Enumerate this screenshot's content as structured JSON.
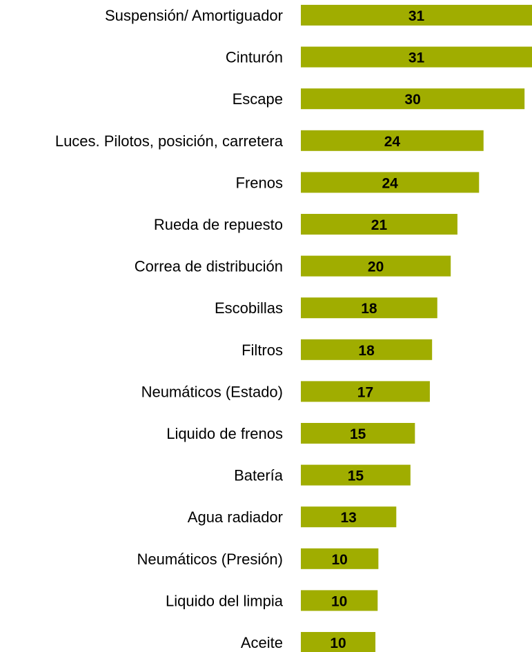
{
  "chart_data": {
    "type": "bar",
    "orientation": "horizontal",
    "categories": [
      "Suspensión/ Amortiguador",
      "Cinturón",
      "Escape",
      "Luces. Pilotos, posición, carretera",
      "Frenos",
      "Rueda de repuesto",
      "Correa de distribución",
      "Escobillas",
      "Filtros",
      "Neumáticos (Estado)",
      "Liquido de frenos",
      "Batería",
      "Agua radiador",
      "Neumáticos (Presión)",
      "Liquido del limpia",
      "Aceite"
    ],
    "values": [
      31,
      31,
      30,
      24,
      24,
      21,
      20,
      18,
      18,
      17,
      15,
      15,
      13,
      10,
      10,
      10
    ],
    "bar_values": [
      31.0,
      31.0,
      30.0,
      24.5,
      23.9,
      21.0,
      20.1,
      18.3,
      17.6,
      17.3,
      15.3,
      14.7,
      12.8,
      10.4,
      10.3,
      10.0
    ],
    "value_labels": [
      "31",
      "31",
      "30",
      "24",
      "24",
      "21",
      "20",
      "18",
      "18",
      "17",
      "15",
      "15",
      "13",
      "10",
      "10",
      "10"
    ],
    "title": "",
    "xlabel": "",
    "ylabel": "",
    "xlim": [
      0,
      31
    ],
    "grid": false,
    "legend": "none",
    "colors": {
      "bar": "#a0ad00",
      "label": "#000000",
      "background": "#ffffff"
    }
  }
}
